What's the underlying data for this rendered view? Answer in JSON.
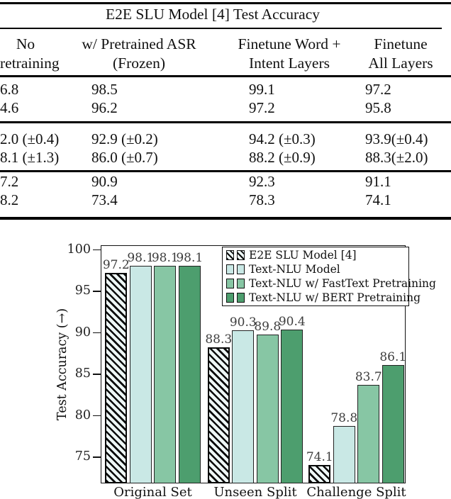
{
  "table": {
    "title": "E2E SLU Model [4] Test Accuracy",
    "columns": [
      {
        "line1": "No",
        "line2": "retraining"
      },
      {
        "line1": "w/ Pretrained ASR",
        "line2": "(Frozen)"
      },
      {
        "line1": "Finetune Word +",
        "line2": "Intent Layers"
      },
      {
        "line1": "Finetune",
        "line2": "All Layers"
      }
    ],
    "rows": [
      [
        "6.8",
        "98.5",
        "99.1",
        "97.2"
      ],
      [
        "4.6",
        "96.2",
        "97.2",
        "95.8"
      ],
      [
        "2.0 (±0.4)",
        "92.9 (±0.2)",
        "94.2 (±0.3)",
        "93.9(±0.4)"
      ],
      [
        "8.1 (±1.3)",
        "86.0 (±0.7)",
        "88.2 (±0.9)",
        "88.3(±2.0)"
      ],
      [
        "7.2",
        "90.9",
        "92.3",
        "91.1"
      ],
      [
        "8.2",
        "73.4",
        "78.3",
        "74.1"
      ]
    ]
  },
  "chart_data": {
    "type": "bar",
    "categories": [
      "Original Set",
      "Unseen Split",
      "Challenge Split"
    ],
    "series": [
      {
        "name": "E2E SLU Model [4]",
        "style": "hatched",
        "color": "#eef7f6",
        "values": [
          97.2,
          88.3,
          74.1
        ]
      },
      {
        "name": "Text-NLU Model",
        "style": "solid",
        "color": "#c9e8e5",
        "values": [
          98.1,
          90.3,
          78.8
        ]
      },
      {
        "name": "Text-NLU w/ FastText Pretraining",
        "style": "solid",
        "color": "#87c6a4",
        "values": [
          98.1,
          89.8,
          83.7
        ]
      },
      {
        "name": "Text-NLU w/ BERT Pretraining",
        "style": "solid",
        "color": "#4d9e6e",
        "values": [
          98.1,
          90.4,
          86.1
        ]
      }
    ],
    "ylabel": "Test Accuracy (→)",
    "yticks": [
      75,
      80,
      85,
      90,
      95,
      100
    ],
    "ylim": [
      71.85,
      100.57
    ],
    "bar_value_labels": true,
    "grid": false,
    "legend_position": "upper right"
  },
  "colors": {
    "bar_border": "#111111",
    "hatch_background": "#eef7f6",
    "value_label": "#3d3d3d",
    "rule": "#000000"
  }
}
